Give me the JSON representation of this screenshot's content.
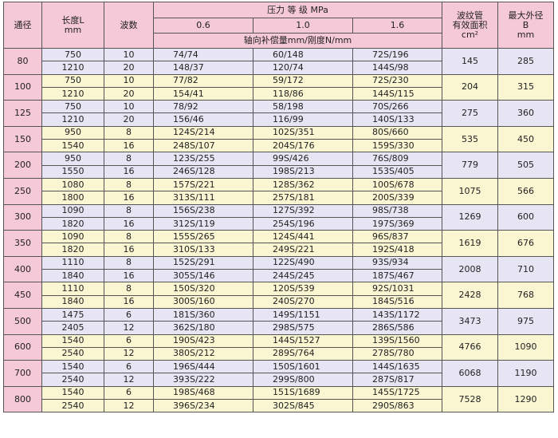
{
  "header": {
    "dn": "通径",
    "length_label": "长度L",
    "length_unit": "mm",
    "waves": "波数",
    "pressure": "压力 等 级  MPa",
    "p06": "0.6",
    "p10": "1.0",
    "p16": "1.6",
    "compensation": "轴向补偿量mm/刚度N/mm",
    "area_line1": "波纹管",
    "area_line2": "有效面积",
    "area_unit": "cm²",
    "diameter_line1": "最大外径",
    "diameter_line2": "B",
    "diameter_unit": "mm"
  },
  "rows": [
    {
      "dn": "80",
      "area": "145",
      "diameter": "285",
      "sub": [
        {
          "length": "750",
          "waves": "10",
          "p06": "74/74",
          "p10": "60/148",
          "p16": "72S/196"
        },
        {
          "length": "1210",
          "waves": "20",
          "p06": "148/37",
          "p10": "120/74",
          "p16": "144S/98"
        }
      ]
    },
    {
      "dn": "100",
      "area": "204",
      "diameter": "315",
      "sub": [
        {
          "length": "750",
          "waves": "10",
          "p06": "77/82",
          "p10": "59/172",
          "p16": "72S/230"
        },
        {
          "length": "1210",
          "waves": "20",
          "p06": "154/41",
          "p10": "118/86",
          "p16": "144S/115"
        }
      ]
    },
    {
      "dn": "125",
      "area": "275",
      "diameter": "360",
      "sub": [
        {
          "length": "750",
          "waves": "10",
          "p06": "78/92",
          "p10": "58/198",
          "p16": "70S/266"
        },
        {
          "length": "1210",
          "waves": "20",
          "p06": "156/46",
          "p10": "116/99",
          "p16": "140S/133"
        }
      ]
    },
    {
      "dn": "150",
      "area": "535",
      "diameter": "450",
      "sub": [
        {
          "length": "950",
          "waves": "8",
          "p06": "124S/214",
          "p10": "102S/351",
          "p16": "80S/660"
        },
        {
          "length": "1540",
          "waves": "16",
          "p06": "248S/107",
          "p10": "204S/176",
          "p16": "159S/330"
        }
      ]
    },
    {
      "dn": "200",
      "area": "779",
      "diameter": "505",
      "sub": [
        {
          "length": "950",
          "waves": "8",
          "p06": "123S/255",
          "p10": "99S/426",
          "p16": "76S/809"
        },
        {
          "length": "1550",
          "waves": "16",
          "p06": "246S/128",
          "p10": "198S/213",
          "p16": "153S/405"
        }
      ]
    },
    {
      "dn": "250",
      "area": "1075",
      "diameter": "566",
      "sub": [
        {
          "length": "1080",
          "waves": "8",
          "p06": "157S/221",
          "p10": "128S/362",
          "p16": "100S/678"
        },
        {
          "length": "1800",
          "waves": "16",
          "p06": "313S/111",
          "p10": "257S/181",
          "p16": "200S/339"
        }
      ]
    },
    {
      "dn": "300",
      "area": "1269",
      "diameter": "600",
      "sub": [
        {
          "length": "1090",
          "waves": "8",
          "p06": "156S/238",
          "p10": "127S/392",
          "p16": "98S/738"
        },
        {
          "length": "1820",
          "waves": "16",
          "p06": "312S/119",
          "p10": "254S/196",
          "p16": "197S/369"
        }
      ]
    },
    {
      "dn": "350",
      "area": "1619",
      "diameter": "676",
      "sub": [
        {
          "length": "1090",
          "waves": "8",
          "p06": "155S/265",
          "p10": "124S/441",
          "p16": "96S/837"
        },
        {
          "length": "1820",
          "waves": "16",
          "p06": "310S/133",
          "p10": "249S/221",
          "p16": "192S/418"
        }
      ]
    },
    {
      "dn": "400",
      "area": "2008",
      "diameter": "710",
      "sub": [
        {
          "length": "1110",
          "waves": "8",
          "p06": "152S/291",
          "p10": "122S/490",
          "p16": "93S/934"
        },
        {
          "length": "1840",
          "waves": "16",
          "p06": "305S/146",
          "p10": "244S/245",
          "p16": "187S/467"
        }
      ]
    },
    {
      "dn": "450",
      "area": "2428",
      "diameter": "768",
      "sub": [
        {
          "length": "1110",
          "waves": "8",
          "p06": "150S/320",
          "p10": "120S/539",
          "p16": "92S/1031"
        },
        {
          "length": "1840",
          "waves": "16",
          "p06": "300S/160",
          "p10": "240S/270",
          "p16": "184S/516"
        }
      ]
    },
    {
      "dn": "500",
      "area": "3473",
      "diameter": "975",
      "sub": [
        {
          "length": "1475",
          "waves": "6",
          "p06": "181S/360",
          "p10": "149S/1151",
          "p16": "143S/1172"
        },
        {
          "length": "2405",
          "waves": "12",
          "p06": "362S/180",
          "p10": "298S/575",
          "p16": "286S/586"
        }
      ]
    },
    {
      "dn": "600",
      "area": "4766",
      "diameter": "1090",
      "sub": [
        {
          "length": "1540",
          "waves": "6",
          "p06": "190S/423",
          "p10": "144S/1527",
          "p16": "139S/1560"
        },
        {
          "length": "2540",
          "waves": "12",
          "p06": "380S/212",
          "p10": "289S/764",
          "p16": "278S/780"
        }
      ]
    },
    {
      "dn": "700",
      "area": "6068",
      "diameter": "1190",
      "sub": [
        {
          "length": "1540",
          "waves": "6",
          "p06": "196S/444",
          "p10": "150S/1601",
          "p16": "144S/1635"
        },
        {
          "length": "2540",
          "waves": "12",
          "p06": "393S/222",
          "p10": "299S/800",
          "p16": "287S/817"
        }
      ]
    },
    {
      "dn": "800",
      "area": "7528",
      "diameter": "1290",
      "sub": [
        {
          "length": "1540",
          "waves": "6",
          "p06": "198S/468",
          "p10": "151S/1689",
          "p16": "145S/1725"
        },
        {
          "length": "2540",
          "waves": "12",
          "p06": "396S/234",
          "p10": "302S/845",
          "p16": "290S/863"
        }
      ]
    }
  ]
}
